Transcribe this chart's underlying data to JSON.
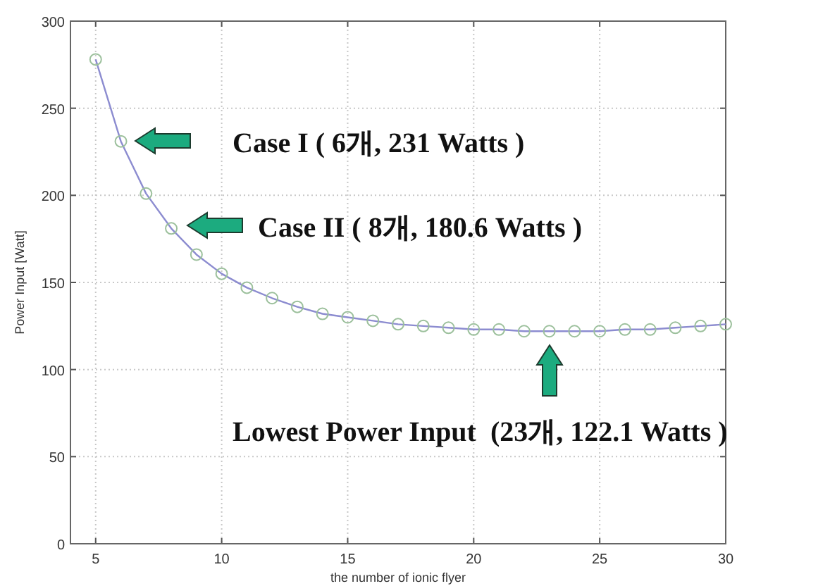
{
  "chart_data": {
    "type": "line",
    "xlabel": "the number of ionic flyer",
    "ylabel": "Power Input [Watt]",
    "x": [
      5,
      6,
      7,
      8,
      9,
      10,
      11,
      12,
      13,
      14,
      15,
      16,
      17,
      18,
      19,
      20,
      21,
      22,
      23,
      24,
      25,
      26,
      27,
      28,
      29,
      30
    ],
    "series": [
      {
        "color": "#8c8cd0",
        "values": [
          278,
          231,
          201,
          181,
          166,
          155,
          147,
          141,
          136,
          132,
          130,
          128,
          126,
          125,
          124,
          123,
          123,
          122,
          122,
          122,
          122,
          123,
          123,
          124,
          125,
          126
        ]
      }
    ],
    "xlim": [
      4,
      30
    ],
    "ylim": [
      0,
      300
    ],
    "xticks": [
      5,
      10,
      15,
      20,
      25,
      30
    ],
    "yticks": [
      0,
      50,
      100,
      150,
      200,
      250,
      300
    ],
    "grid": true,
    "marker": "circle",
    "line_style": "solid",
    "annotations": [
      "Case I ( 6개, 231 Watts )",
      "Case II ( 8개, 180.6 Watts )",
      "Lowest Power Input  (23개, 122.1 Watts )"
    ]
  }
}
